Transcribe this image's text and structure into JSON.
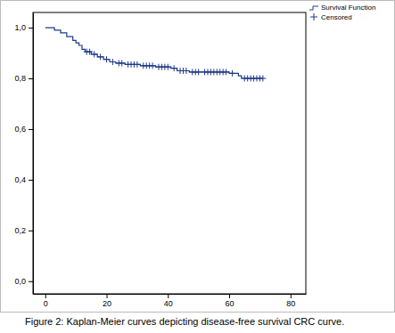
{
  "chart_data": {
    "type": "step",
    "title": "Figure 2: Kaplan-Meier curves depicting disease-free survival CRC curve.",
    "xlim": [
      -4,
      85
    ],
    "ylim": [
      -0.05,
      1.06
    ],
    "xticks": [
      0,
      20,
      40,
      60,
      80
    ],
    "yticks": [
      {
        "value": 0,
        "label": "0,0"
      },
      {
        "value": 0.2,
        "label": "0,2"
      },
      {
        "value": 0.4,
        "label": "0,4"
      },
      {
        "value": 0.6,
        "label": "0,6"
      },
      {
        "value": 0.8,
        "label": "0,8"
      },
      {
        "value": 1.0,
        "label": "1,0"
      }
    ],
    "grid": false,
    "legend": "top-right",
    "series": [
      {
        "name": "Survival Function",
        "type": "step",
        "color": "#1f3a8a",
        "x": [
          0,
          3,
          5,
          7,
          9,
          10,
          11,
          12,
          13,
          15,
          17,
          19,
          21,
          23,
          26,
          31,
          36,
          41,
          43,
          47,
          60,
          63,
          64,
          71
        ],
        "values": [
          1.0,
          0.99,
          0.98,
          0.965,
          0.95,
          0.94,
          0.93,
          0.915,
          0.905,
          0.895,
          0.885,
          0.875,
          0.865,
          0.86,
          0.855,
          0.85,
          0.845,
          0.84,
          0.83,
          0.825,
          0.82,
          0.81,
          0.8,
          0.8
        ]
      },
      {
        "name": "Censored",
        "type": "scatter",
        "marker": "plus",
        "color": "#1f3a8a",
        "x": [
          13.5,
          14.5,
          16,
          18,
          20,
          22,
          24,
          25,
          27,
          28,
          29,
          30,
          32,
          33,
          34,
          35,
          37,
          38,
          39,
          40,
          42,
          44,
          45,
          46,
          48,
          49,
          50,
          52,
          53,
          54,
          55,
          56,
          57,
          58,
          59,
          61,
          65,
          66,
          67,
          68,
          69,
          70,
          71
        ],
        "values": [
          0.905,
          0.905,
          0.895,
          0.885,
          0.875,
          0.865,
          0.86,
          0.86,
          0.855,
          0.855,
          0.855,
          0.855,
          0.85,
          0.85,
          0.85,
          0.85,
          0.845,
          0.845,
          0.845,
          0.845,
          0.84,
          0.83,
          0.83,
          0.83,
          0.825,
          0.825,
          0.825,
          0.825,
          0.825,
          0.825,
          0.825,
          0.825,
          0.825,
          0.825,
          0.825,
          0.82,
          0.8,
          0.8,
          0.8,
          0.8,
          0.8,
          0.8,
          0.8
        ]
      }
    ]
  }
}
